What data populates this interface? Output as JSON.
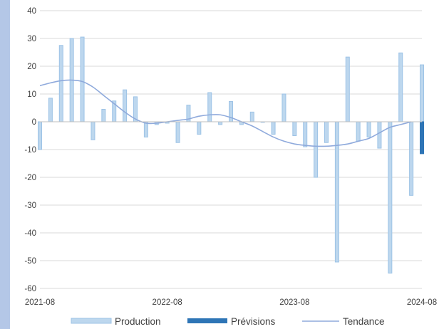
{
  "chart_data": {
    "type": "bar",
    "title": "",
    "xlabel": "",
    "ylabel": "",
    "ylim": [
      -60,
      40
    ],
    "yticks": [
      40,
      30,
      20,
      10,
      0,
      -10,
      -20,
      -30,
      -40,
      -50,
      -60
    ],
    "xtick_labels": [
      "2021-08",
      "2022-08",
      "2023-08",
      "2024-08"
    ],
    "grid": "horizontal",
    "legend_position": "bottom",
    "colors": {
      "production_fill": "#bdd7ee",
      "production_edge": "#9dc3e6",
      "forecast_fill": "#2e75b6",
      "trend_line": "#8faadc",
      "grid": "#d9d9d9",
      "frame": "#b4c7e7"
    },
    "x": [
      "2021-08",
      "2021-09",
      "2021-10",
      "2021-11",
      "2021-12",
      "2022-01",
      "2022-02",
      "2022-03",
      "2022-04",
      "2022-05",
      "2022-06",
      "2022-07",
      "2022-08",
      "2022-09",
      "2022-10",
      "2022-11",
      "2022-12",
      "2023-01",
      "2023-02",
      "2023-03",
      "2023-04",
      "2023-05",
      "2023-06",
      "2023-07",
      "2023-08",
      "2023-09",
      "2023-10",
      "2023-11",
      "2023-12",
      "2024-01",
      "2024-02",
      "2024-03",
      "2024-04",
      "2024-05",
      "2024-06",
      "2024-07",
      "2024-08"
    ],
    "series": [
      {
        "name": "Production",
        "kind": "bar",
        "values": [
          -10,
          8.5,
          27.5,
          30,
          30.5,
          -6.5,
          4.5,
          7.5,
          11.5,
          9,
          -5.5,
          -1,
          -0.5,
          -7.5,
          6,
          -4.5,
          10.5,
          -1,
          7.3,
          -1,
          3.5,
          0,
          -4.5,
          10,
          -5,
          -9,
          -20,
          -7.5,
          -50.5,
          23.3,
          -7,
          -5.5,
          -9.5,
          -54.5,
          24.8,
          -26.5,
          20.5
        ]
      },
      {
        "name": "Prévisions",
        "kind": "bar",
        "values": [
          null,
          null,
          null,
          null,
          null,
          null,
          null,
          null,
          null,
          null,
          null,
          null,
          null,
          null,
          null,
          null,
          null,
          null,
          null,
          null,
          null,
          null,
          null,
          null,
          null,
          null,
          null,
          null,
          null,
          null,
          null,
          null,
          null,
          null,
          null,
          null,
          -11.5
        ]
      },
      {
        "name": "Tendance",
        "kind": "line",
        "values": [
          13,
          14,
          14.8,
          15,
          14.5,
          12.5,
          9.5,
          6.5,
          3.5,
          1,
          -0.5,
          -0.5,
          0,
          0.5,
          1,
          2,
          2.5,
          2.5,
          1.5,
          0,
          -1.5,
          -3.5,
          -5.5,
          -7,
          -8,
          -8.5,
          -8.8,
          -8.8,
          -8.5,
          -8,
          -7,
          -6,
          -4,
          -2,
          -1,
          0,
          null
        ]
      }
    ]
  }
}
